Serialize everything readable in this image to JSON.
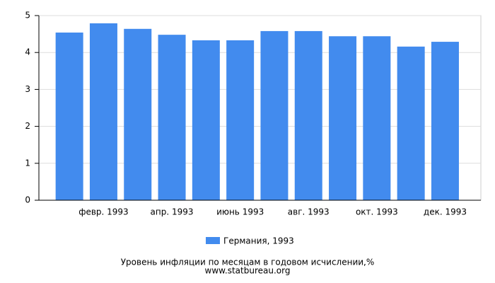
{
  "chart_data": {
    "type": "bar",
    "title": "Уровень инфляции по месяцам в годовом исчислении,%",
    "subtitle": "www.statbureau.org",
    "categories": [
      null,
      "февр. 1993",
      null,
      "апр. 1993",
      null,
      "июнь 1993",
      null,
      "авг. 1993",
      null,
      "окт. 1993",
      null,
      "дек. 1993"
    ],
    "series": [
      {
        "name": "Германия, 1993",
        "color": "#428bee",
        "values": [
          4.54,
          4.79,
          4.64,
          4.48,
          4.33,
          4.33,
          4.58,
          4.58,
          4.44,
          4.44,
          4.16,
          4.29
        ]
      }
    ],
    "ylim": [
      0,
      5
    ],
    "yticks": [
      0,
      1,
      2,
      3,
      4,
      5
    ],
    "grid": true
  }
}
